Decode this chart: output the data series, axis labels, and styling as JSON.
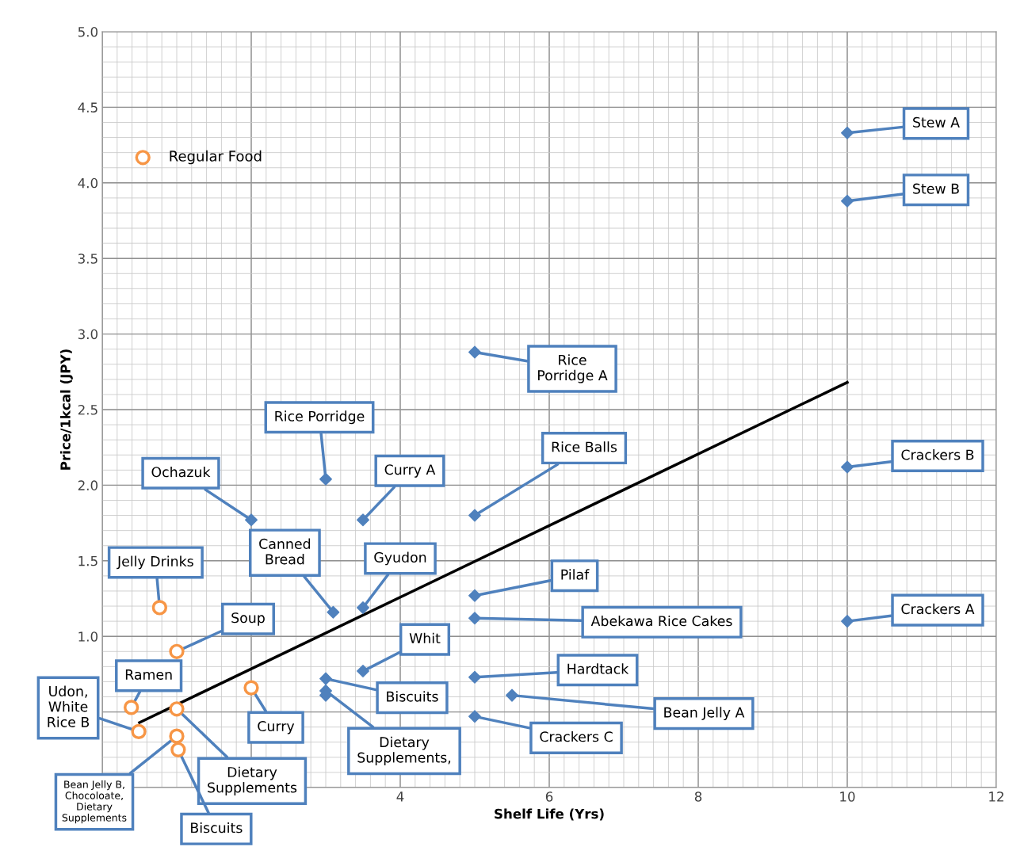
{
  "chart_data": {
    "type": "scatter",
    "xlabel": "Shelf Life (Yrs)",
    "ylabel": "Price/1kcal (JPY)",
    "xlim": [
      0,
      12
    ],
    "ylim": [
      0,
      5
    ],
    "xticks": [
      {
        "value": 0,
        "label": null
      },
      {
        "value": 2,
        "label": null
      },
      4,
      6,
      8,
      10,
      12
    ],
    "yticks": [
      {
        "value": 0,
        "label": null
      },
      {
        "value": 0.5,
        "label": null
      },
      {
        "value": 1,
        "label": "1.0"
      },
      {
        "value": 1.5,
        "label": "1.5"
      },
      {
        "value": 2,
        "label": "2.0"
      },
      {
        "value": 2.5,
        "label": "2.5"
      },
      {
        "value": 3,
        "label": "3.0"
      },
      {
        "value": 3.5,
        "label": "3.5"
      },
      {
        "value": 4,
        "label": "4.0"
      },
      {
        "value": 4.5,
        "label": "4.5"
      },
      {
        "value": 5,
        "label": "5.0"
      }
    ],
    "grid": true,
    "legend": "top left",
    "series": [
      {
        "type": "line",
        "color": "#000000",
        "marker": "none",
        "x": [
          0.5,
          10
        ],
        "values": [
          0.43,
          2.68
        ]
      },
      {
        "color": "#4f81bd",
        "marker": "diamond",
        "x": [
          10,
          10,
          10,
          10,
          5,
          3,
          3.5,
          2,
          5,
          3.1,
          3.5,
          5,
          5,
          5,
          5.5,
          5,
          3.5,
          3,
          3,
          3
        ],
        "values": [
          4.33,
          3.88,
          2.12,
          1.1,
          2.88,
          2.04,
          1.77,
          1.77,
          1.8,
          1.16,
          1.19,
          1.27,
          1.12,
          0.73,
          0.61,
          0.47,
          0.77,
          0.72,
          0.64,
          0.61
        ]
      },
      {
        "name": "Regular Food",
        "color": "#f79646",
        "marker": "circle",
        "x": [
          0.77,
          1.0,
          0.39,
          0.49,
          1.0,
          1.0,
          1.02,
          2.0
        ],
        "values": [
          1.19,
          0.9,
          0.53,
          0.37,
          0.52,
          0.34,
          0.25,
          0.66
        ]
      }
    ],
    "annotations": [
      {
        "text": "Stew A",
        "x": 10,
        "y": 4.33
      },
      {
        "text": "Stew B",
        "x": 10,
        "y": 3.88
      },
      {
        "text": "Crackers B",
        "x": 10,
        "y": 2.12
      },
      {
        "text": "Crackers A",
        "x": 10,
        "y": 1.1
      },
      {
        "text": "Rice\nPorridge A",
        "x": 5,
        "y": 2.88
      },
      {
        "text": "Rice Porridge",
        "x": 3,
        "y": 2.04
      },
      {
        "text": "Curry A",
        "x": 3.5,
        "y": 1.77
      },
      {
        "text": "Ochazuk",
        "x": 2,
        "y": 1.77
      },
      {
        "text": "Rice Balls",
        "x": 5,
        "y": 1.8
      },
      {
        "text": "Canned\nBread",
        "x": 3.1,
        "y": 1.16
      },
      {
        "text": "Gyudon",
        "x": 3.5,
        "y": 1.19
      },
      {
        "text": "Pilaf",
        "x": 5,
        "y": 1.27
      },
      {
        "text": "Abekawa Rice Cakes",
        "x": 5,
        "y": 1.12
      },
      {
        "text": "Hardtack",
        "x": 5,
        "y": 0.73
      },
      {
        "text": "Bean Jelly A",
        "x": 5.5,
        "y": 0.61
      },
      {
        "text": "Crackers C",
        "x": 5,
        "y": 0.47
      },
      {
        "text": "Whit",
        "x": 3.5,
        "y": 0.77
      },
      {
        "text": "Biscuits",
        "x": 3,
        "y": 0.72
      },
      {
        "text": "Dietary\nSupplements,",
        "x": 3,
        "y": 0.64
      },
      {
        "text": "Jelly Drinks",
        "x": 0.77,
        "y": 1.19
      },
      {
        "text": "Soup",
        "x": 1.0,
        "y": 0.9
      },
      {
        "text": "Ramen",
        "x": 0.39,
        "y": 0.53
      },
      {
        "text": "Udon,\nWhite\nRice B",
        "x": 0.49,
        "y": 0.37
      },
      {
        "text": "Dietary\nSupplements",
        "x": 1.0,
        "y": 0.52
      },
      {
        "text": "Bean Jelly B,\nChocoloate,\nDietary\nSupplements",
        "x": 1.0,
        "y": 0.34
      },
      {
        "text": "Biscuits",
        "x": 1.02,
        "y": 0.25
      },
      {
        "text": "Curry",
        "x": 2.0,
        "y": 0.66
      }
    ]
  }
}
